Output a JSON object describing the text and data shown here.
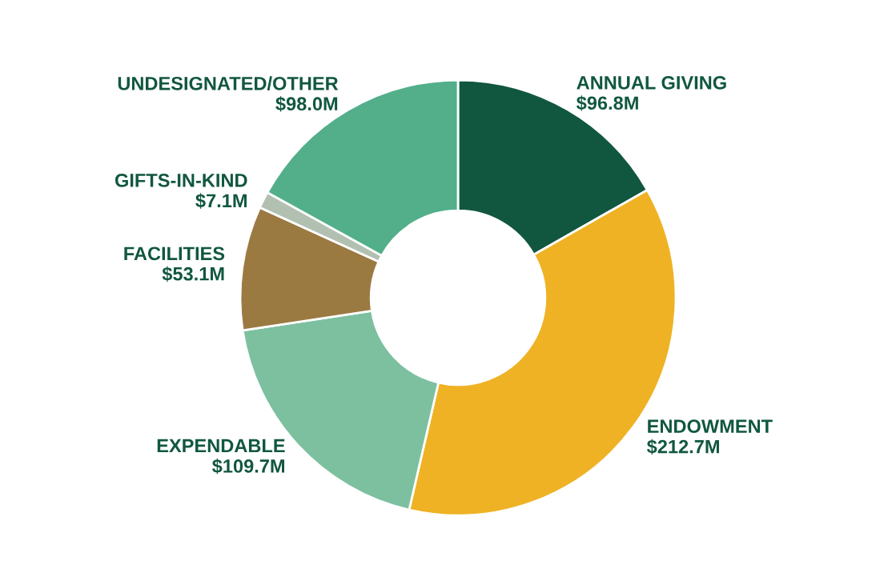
{
  "chart_data": {
    "type": "donut",
    "categories": [
      "ANNUAL GIVING",
      "ENDOWMENT",
      "EXPENDABLE",
      "FACILITIES",
      "GIFTS-IN-KIND",
      "UNDESIGNATED/OTHER"
    ],
    "values": [
      96.8,
      212.7,
      109.7,
      53.1,
      7.1,
      98.0
    ],
    "value_labels": [
      "$96.8M",
      "$212.7M",
      "$109.7M",
      "$53.1M",
      "$7.1M",
      "$98.0M"
    ],
    "colors": [
      "#11573f",
      "#efb224",
      "#7cc0a0",
      "#9b7a42",
      "#b2c0b2",
      "#52af8a"
    ],
    "legend": false
  }
}
